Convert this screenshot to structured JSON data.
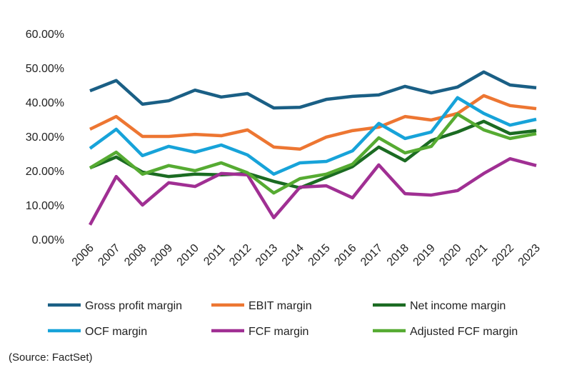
{
  "chart_data": {
    "type": "line",
    "title": "",
    "xlabel": "",
    "ylabel": "",
    "ylim": [
      0,
      60
    ],
    "yticks": [
      "0.00%",
      "10.00%",
      "20.00%",
      "30.00%",
      "40.00%",
      "50.00%",
      "60.00%"
    ],
    "grid": false,
    "legend_placement": "bottom",
    "x": [
      "2006",
      "2007",
      "2008",
      "2009",
      "2010",
      "2011",
      "2012",
      "2013",
      "2014",
      "2015",
      "2016",
      "2017",
      "2018",
      "2019",
      "2020",
      "2021",
      "2022",
      "2023"
    ],
    "series": [
      {
        "name": "Gross profit margin",
        "color": "#1a5f85",
        "values": [
          43.3,
          46.3,
          39.4,
          40.4,
          43.5,
          41.5,
          42.5,
          38.3,
          38.5,
          40.8,
          41.7,
          42.1,
          44.6,
          42.7,
          44.4,
          48.8,
          45.0,
          44.2
        ]
      },
      {
        "name": "EBIT margin",
        "color": "#ed7632",
        "values": [
          32.1,
          35.8,
          30.0,
          30.0,
          30.6,
          30.2,
          31.9,
          26.9,
          26.3,
          29.8,
          31.7,
          32.7,
          35.8,
          34.8,
          36.7,
          41.9,
          39.0,
          38.1
        ]
      },
      {
        "name": "Net income margin",
        "color": "#1b6b22",
        "values": [
          20.8,
          24.0,
          19.6,
          18.3,
          19.0,
          18.8,
          19.2,
          16.9,
          15.0,
          18.1,
          21.2,
          26.9,
          22.9,
          28.8,
          31.3,
          34.4,
          30.8,
          31.7
        ]
      },
      {
        "name": "OCF margin",
        "color": "#17a3d9",
        "values": [
          26.5,
          32.1,
          24.4,
          27.1,
          25.4,
          27.5,
          24.6,
          19.0,
          22.3,
          22.7,
          25.8,
          33.8,
          29.4,
          31.3,
          41.3,
          36.7,
          33.3,
          35.0
        ]
      },
      {
        "name": "FCF margin",
        "color": "#a02f93",
        "values": [
          4.2,
          18.3,
          10.0,
          16.5,
          15.4,
          19.2,
          18.8,
          6.3,
          15.2,
          15.6,
          12.1,
          21.7,
          13.3,
          12.9,
          14.2,
          19.2,
          23.5,
          21.5
        ]
      },
      {
        "name": "Adjusted FCF margin",
        "color": "#56ab32",
        "values": [
          20.8,
          25.4,
          19.0,
          21.5,
          20.0,
          22.3,
          19.4,
          13.5,
          17.7,
          19.0,
          21.9,
          29.6,
          25.2,
          27.1,
          36.5,
          31.9,
          29.4,
          30.8
        ]
      }
    ]
  },
  "source": "(Source: FactSet)"
}
